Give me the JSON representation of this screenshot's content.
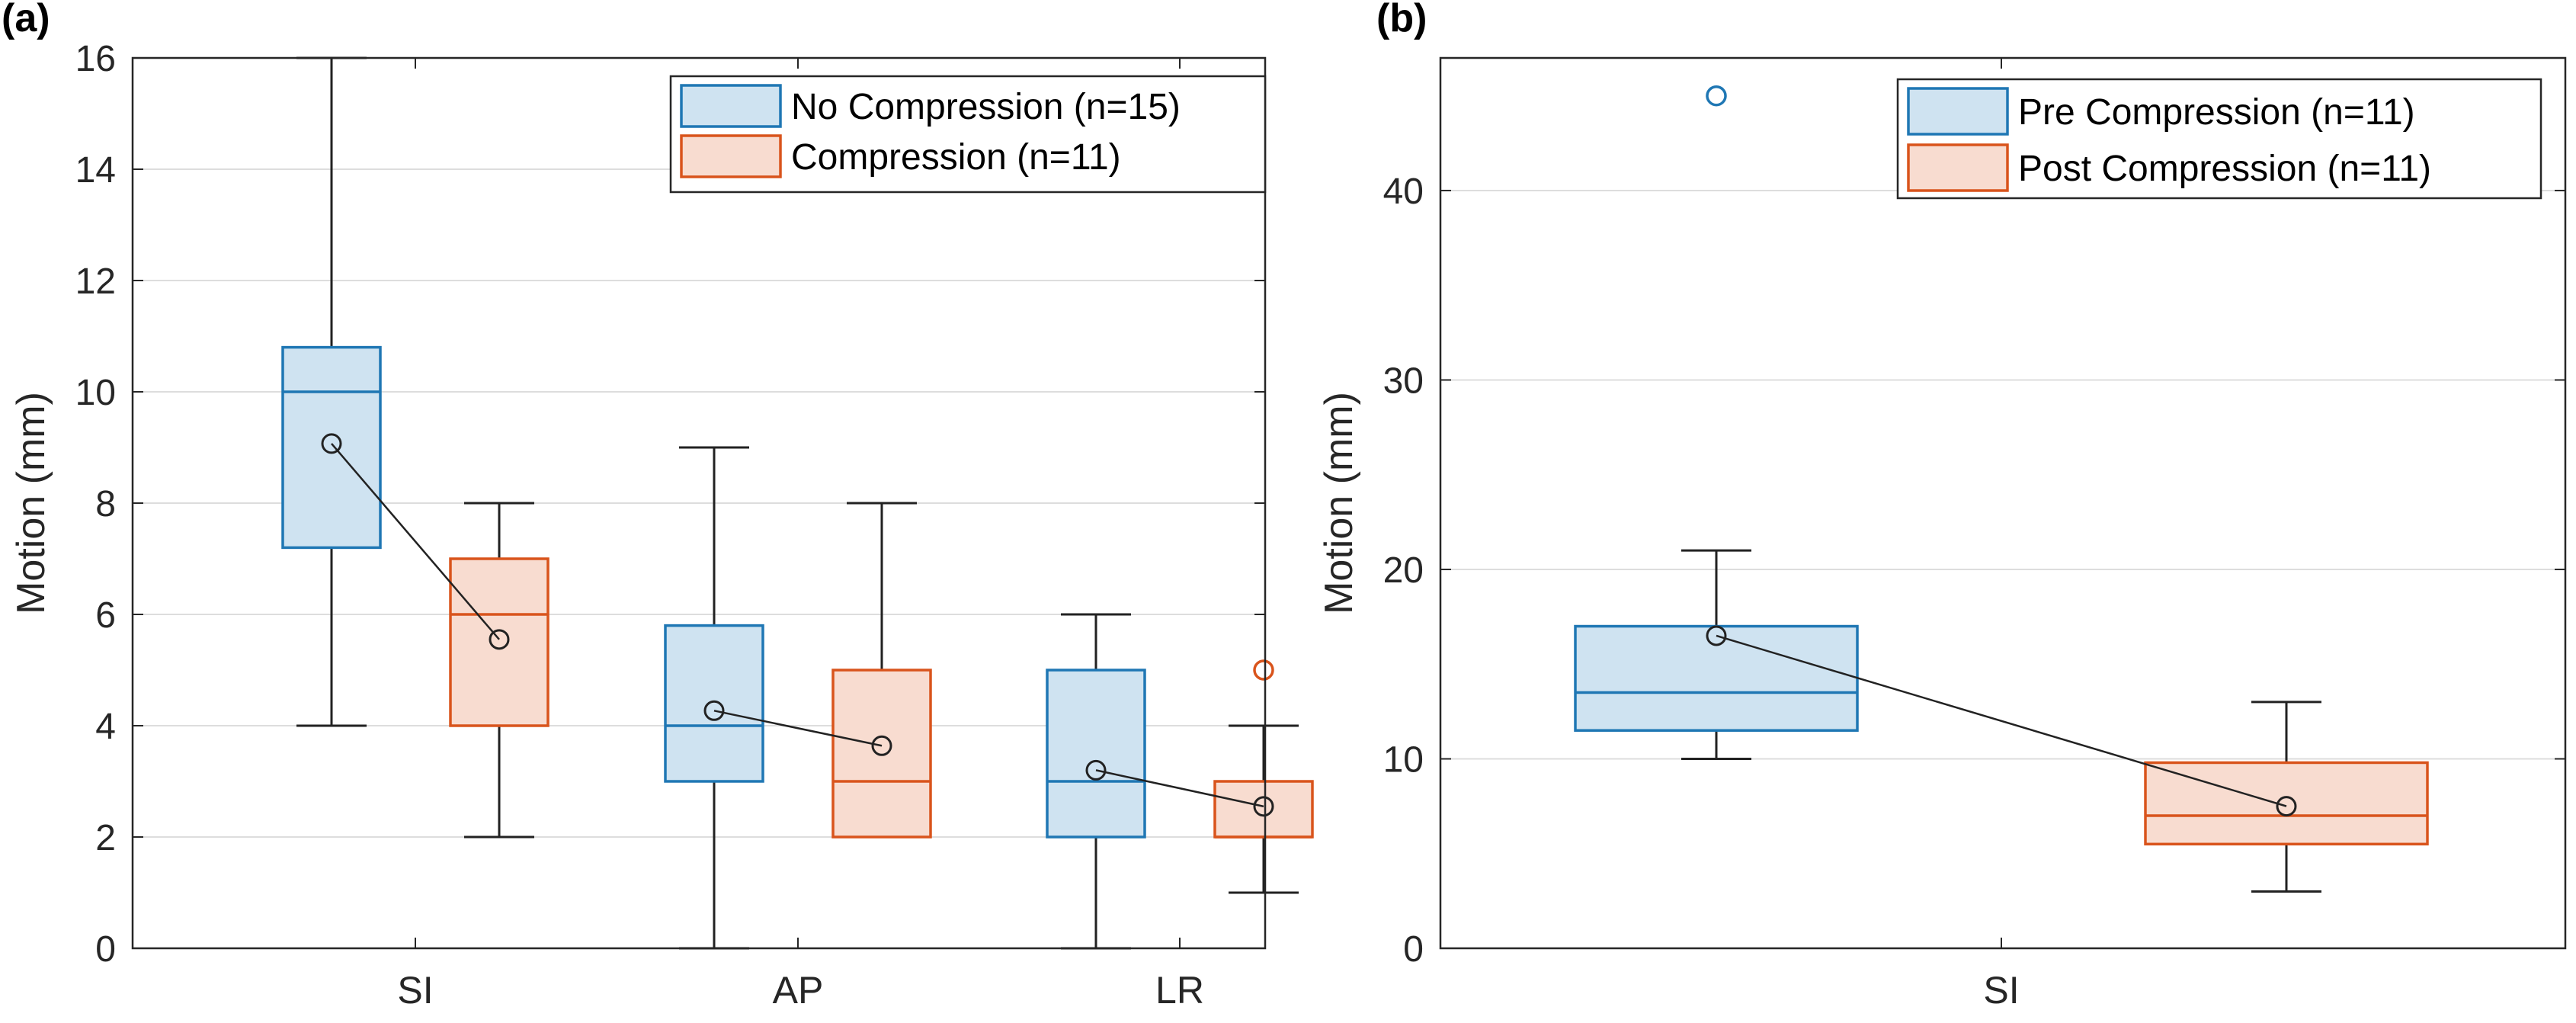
{
  "panel_labels": {
    "a": "(a)",
    "b": "(b)"
  },
  "colors": {
    "blue_edge": "#1f77b4",
    "blue_fill": "#cfe3f1",
    "orange_edge": "#d9541c",
    "orange_fill": "#f8dcd0",
    "whisker": "#222222",
    "grid": "#dddddd",
    "axis": "#262626"
  },
  "chart_data": [
    {
      "id": "a",
      "type": "box",
      "ylabel": "Motion (mm)",
      "ylim": [
        0,
        16
      ],
      "yticks": [
        0,
        2,
        4,
        6,
        8,
        10,
        12,
        14,
        16
      ],
      "grid": true,
      "legend_position": "top-right",
      "categories": [
        "SI",
        "AP",
        "LR"
      ],
      "series": [
        {
          "name": "No Compression (n=15)",
          "color": "blue",
          "boxes": [
            {
              "category": "SI",
              "min": 4,
              "q1": 7.2,
              "median": 10,
              "q3": 10.8,
              "max": 16,
              "mean": 9.07,
              "outliers": []
            },
            {
              "category": "AP",
              "min": 0,
              "q1": 3,
              "median": 4,
              "q3": 5.8,
              "max": 9,
              "mean": 4.27,
              "outliers": []
            },
            {
              "category": "LR",
              "min": 0,
              "q1": 2,
              "median": 3,
              "q3": 5,
              "max": 6,
              "mean": 3.2,
              "outliers": []
            }
          ]
        },
        {
          "name": "Compression (n=11)",
          "color": "orange",
          "boxes": [
            {
              "category": "SI",
              "min": 2,
              "q1": 4,
              "median": 6,
              "q3": 7,
              "max": 8,
              "mean": 5.55,
              "outliers": []
            },
            {
              "category": "AP",
              "min": 2,
              "q1": 2,
              "median": 3,
              "q3": 5,
              "max": 8,
              "mean": 3.64,
              "outliers": []
            },
            {
              "category": "LR",
              "min": 1,
              "q1": 2,
              "median": 2,
              "q3": 3,
              "max": 4,
              "mean": 2.55,
              "outliers": [
                5
              ]
            }
          ]
        }
      ]
    },
    {
      "id": "b",
      "type": "box",
      "ylabel": "Motion (mm)",
      "ylim": [
        0,
        47
      ],
      "yticks": [
        0,
        10,
        20,
        30,
        40
      ],
      "grid": true,
      "legend_position": "top-right",
      "categories": [
        "SI"
      ],
      "series": [
        {
          "name": "Pre Compression (n=11)",
          "color": "blue",
          "boxes": [
            {
              "category": "SI",
              "min": 10,
              "q1": 11.5,
              "median": 13.5,
              "q3": 17,
              "max": 21,
              "mean": 16.5,
              "outliers": [
                45
              ]
            }
          ]
        },
        {
          "name": "Post Compression (n=11)",
          "color": "orange",
          "boxes": [
            {
              "category": "SI",
              "min": 3,
              "q1": 5.5,
              "median": 7,
              "q3": 9.8,
              "max": 13,
              "mean": 7.5,
              "outliers": []
            }
          ]
        }
      ]
    }
  ]
}
